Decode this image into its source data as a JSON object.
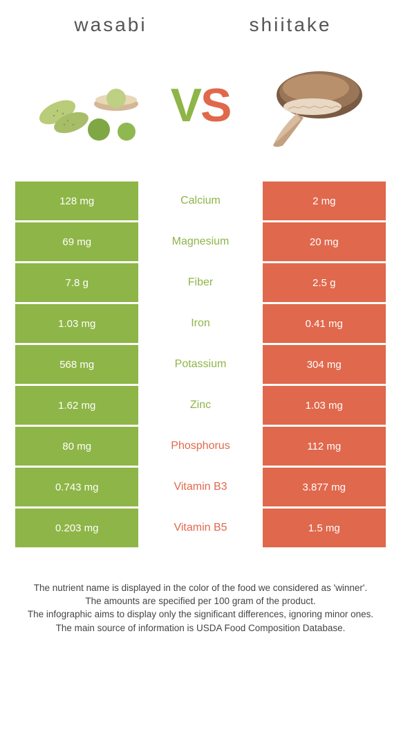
{
  "colors": {
    "left": "#8eb547",
    "right": "#e0684c",
    "text": "#555"
  },
  "foods": {
    "left": "wasabi",
    "right": "shiitake"
  },
  "vs": {
    "v": "V",
    "s": "S"
  },
  "rows": [
    {
      "left": "128 mg",
      "name": "Calcium",
      "right": "2 mg",
      "winner": "left"
    },
    {
      "left": "69 mg",
      "name": "Magnesium",
      "right": "20 mg",
      "winner": "left"
    },
    {
      "left": "7.8 g",
      "name": "Fiber",
      "right": "2.5 g",
      "winner": "left"
    },
    {
      "left": "1.03 mg",
      "name": "Iron",
      "right": "0.41 mg",
      "winner": "left"
    },
    {
      "left": "568 mg",
      "name": "Potassium",
      "right": "304 mg",
      "winner": "left"
    },
    {
      "left": "1.62 mg",
      "name": "Zinc",
      "right": "1.03 mg",
      "winner": "left"
    },
    {
      "left": "80 mg",
      "name": "Phosphorus",
      "right": "112 mg",
      "winner": "right"
    },
    {
      "left": "0.743 mg",
      "name": "Vitamin B3",
      "right": "3.877 mg",
      "winner": "right"
    },
    {
      "left": "0.203 mg",
      "name": "Vitamin B5",
      "right": "1.5 mg",
      "winner": "right"
    }
  ],
  "footer": {
    "l1": "The nutrient name is displayed in the color of the food we considered as 'winner'.",
    "l2": "The amounts are specified per 100 gram of the product.",
    "l3": "The infographic aims to display only the significant differences, ignoring minor ones.",
    "l4": "The main source of information is USDA Food Composition Database."
  }
}
